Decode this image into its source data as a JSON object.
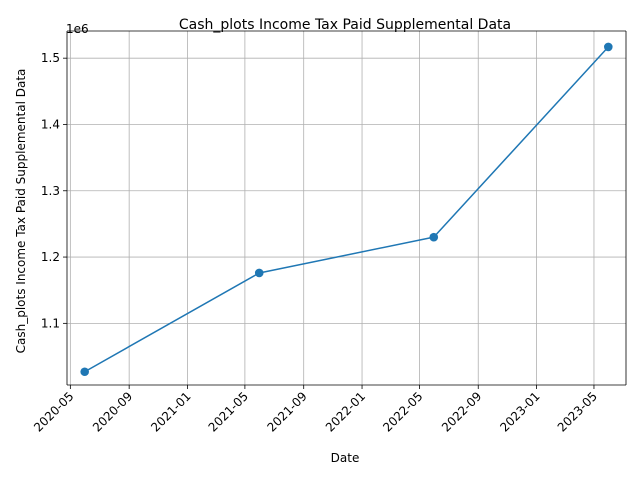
{
  "chart_data": {
    "type": "line",
    "title": "Cash_plots Income Tax Paid Supplemental Data",
    "xlabel": "Date",
    "ylabel": "Cash_plots Income Tax Paid Supplemental Data",
    "y_offset_label": "1e6",
    "x": [
      "2020-05-31",
      "2021-05-31",
      "2022-05-31",
      "2023-05-31"
    ],
    "series": [
      {
        "values": [
          1027000,
          1176000,
          1230000,
          1517000
        ]
      }
    ],
    "xlim": [
      "2020-04-24",
      "2023-07-07"
    ],
    "ylim": [
      1007000,
      1541000
    ],
    "x_ticks": [
      "2020-05",
      "2020-09",
      "2021-01",
      "2021-05",
      "2021-09",
      "2022-01",
      "2022-05",
      "2022-09",
      "2023-01",
      "2023-05"
    ],
    "x_tick_dates": [
      "2020-05-01",
      "2020-09-01",
      "2021-01-01",
      "2021-05-01",
      "2021-09-01",
      "2022-01-01",
      "2022-05-01",
      "2022-09-01",
      "2023-01-01",
      "2023-05-01"
    ],
    "y_ticks": [
      "1.1",
      "1.2",
      "1.3",
      "1.4",
      "1.5"
    ],
    "y_tick_values": [
      1100000,
      1200000,
      1300000,
      1400000,
      1500000
    ],
    "grid": true,
    "markers": true,
    "colors": {
      "line": "#1f77b4",
      "grid": "#b0b0b0",
      "axes": "#000000"
    }
  }
}
